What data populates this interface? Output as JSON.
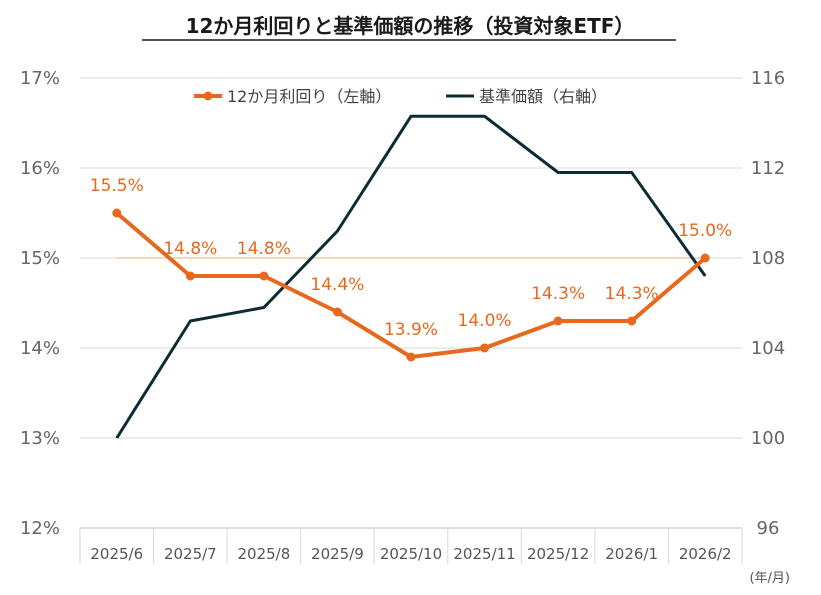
{
  "chart_data": {
    "type": "line",
    "title": "12か月利回りと基準価額の推移（投資対象ETF）",
    "x_unit": "(年/月)",
    "categories": [
      "2025/6",
      "2025/7",
      "2025/8",
      "2025/9",
      "2025/10",
      "2025/11",
      "2025/12",
      "2026/1",
      "2026/2"
    ],
    "left_axis": {
      "ylim": [
        12,
        17
      ],
      "ticks": [
        "12%",
        "13%",
        "14%",
        "15%",
        "16%",
        "17%"
      ],
      "tick_values": [
        12,
        13,
        14,
        15,
        16,
        17
      ]
    },
    "right_axis": {
      "ylim": [
        96,
        116
      ],
      "ticks": [
        "96",
        "100",
        "104",
        "108",
        "112",
        "116"
      ],
      "tick_values": [
        96,
        100,
        104,
        108,
        112,
        116
      ]
    },
    "grid": true,
    "legend_position": "top",
    "series": [
      {
        "name": "12か月利回り（左軸）",
        "axis": "left",
        "color": "#e8681d",
        "values": [
          15.5,
          14.8,
          14.8,
          14.4,
          13.9,
          14.0,
          14.3,
          14.3,
          15.0
        ],
        "labels": [
          "15.5%",
          "14.8%",
          "14.8%",
          "14.4%",
          "13.9%",
          "14.0%",
          "14.3%",
          "14.3%",
          "15.0%"
        ]
      },
      {
        "name": "基準価額（右軸）",
        "axis": "right",
        "color": "#0d2b33",
        "values": [
          100.0,
          105.2,
          105.8,
          109.2,
          114.3,
          114.3,
          111.8,
          111.8,
          107.2
        ]
      }
    ],
    "reference_line": {
      "axis": "left",
      "value": 15.0,
      "color": "#f5c7a3"
    }
  }
}
